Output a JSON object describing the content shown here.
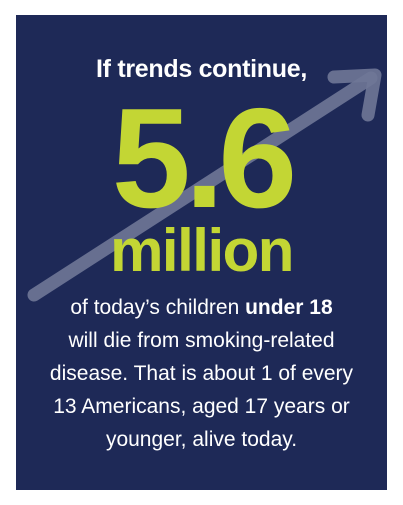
{
  "headline": "If trends continue,",
  "big_number": "5.6",
  "big_unit": "million",
  "body": {
    "line1_pre": "of today’s children ",
    "line1_bold": "under 18",
    "line2": "will die from smoking-related",
    "line3": "disease. That is about 1 of every",
    "line4": "13 Americans, aged 17 years or",
    "line5": "younger, alive today."
  },
  "colors": {
    "background": "#1e2957",
    "accent": "#c3d634",
    "text": "#ffffff",
    "arrow": "#6f7797"
  },
  "icons": {
    "arrow": "trend-up-arrow-icon"
  }
}
